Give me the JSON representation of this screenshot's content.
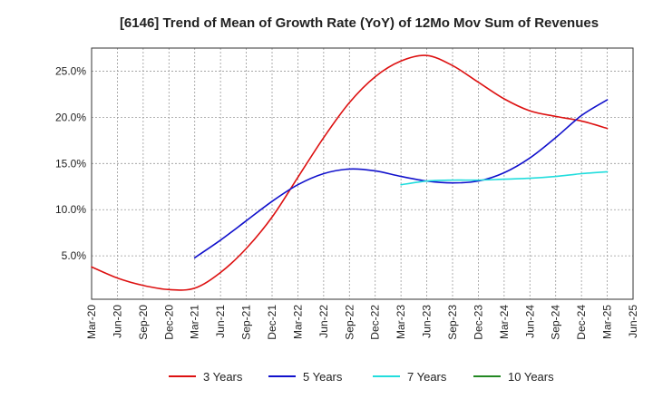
{
  "chart_data": {
    "type": "line",
    "title": "[6146]  Trend of Mean of Growth Rate (YoY) of 12Mo Mov Sum of Revenues",
    "xlabel": "",
    "ylabel": "",
    "x_ticks": [
      "Mar-20",
      "Jun-20",
      "Sep-20",
      "Dec-20",
      "Mar-21",
      "Jun-21",
      "Sep-21",
      "Dec-21",
      "Mar-22",
      "Jun-22",
      "Sep-22",
      "Dec-22",
      "Mar-23",
      "Jun-23",
      "Sep-23",
      "Dec-23",
      "Mar-24",
      "Jun-24",
      "Sep-24",
      "Dec-24",
      "Mar-25",
      "Jun-25"
    ],
    "y_ticks": [
      5,
      10,
      15,
      20,
      25
    ],
    "y_tick_labels": [
      "5.0%",
      "10.0%",
      "15.0%",
      "20.0%",
      "25.0%"
    ],
    "ylim": [
      0.3,
      27.5
    ],
    "grid": true,
    "legend_position": "bottom",
    "series": [
      {
        "name": "3 Years",
        "color": "#dd1111",
        "values": [
          3.8,
          2.6,
          1.8,
          1.35,
          1.5,
          3.2,
          5.8,
          9.2,
          13.5,
          17.8,
          21.6,
          24.4,
          26.1,
          26.7,
          25.6,
          23.8,
          22.0,
          20.7,
          20.1,
          19.6,
          18.8,
          null
        ]
      },
      {
        "name": "5 Years",
        "color": "#1111cc",
        "values": [
          null,
          null,
          null,
          null,
          4.8,
          6.7,
          8.8,
          10.9,
          12.7,
          13.9,
          14.4,
          14.2,
          13.6,
          13.1,
          12.9,
          13.1,
          14.0,
          15.6,
          17.8,
          20.2,
          21.9,
          null
        ]
      },
      {
        "name": "7 Years",
        "color": "#22dddd",
        "values": [
          null,
          null,
          null,
          null,
          null,
          null,
          null,
          null,
          null,
          null,
          null,
          null,
          12.7,
          13.1,
          13.2,
          13.2,
          13.3,
          13.4,
          13.6,
          13.9,
          14.1,
          null
        ]
      },
      {
        "name": "10 Years",
        "color": "#228822",
        "values": [
          null,
          null,
          null,
          null,
          null,
          null,
          null,
          null,
          null,
          null,
          null,
          null,
          null,
          null,
          null,
          null,
          null,
          null,
          null,
          null,
          null,
          null
        ]
      }
    ]
  }
}
